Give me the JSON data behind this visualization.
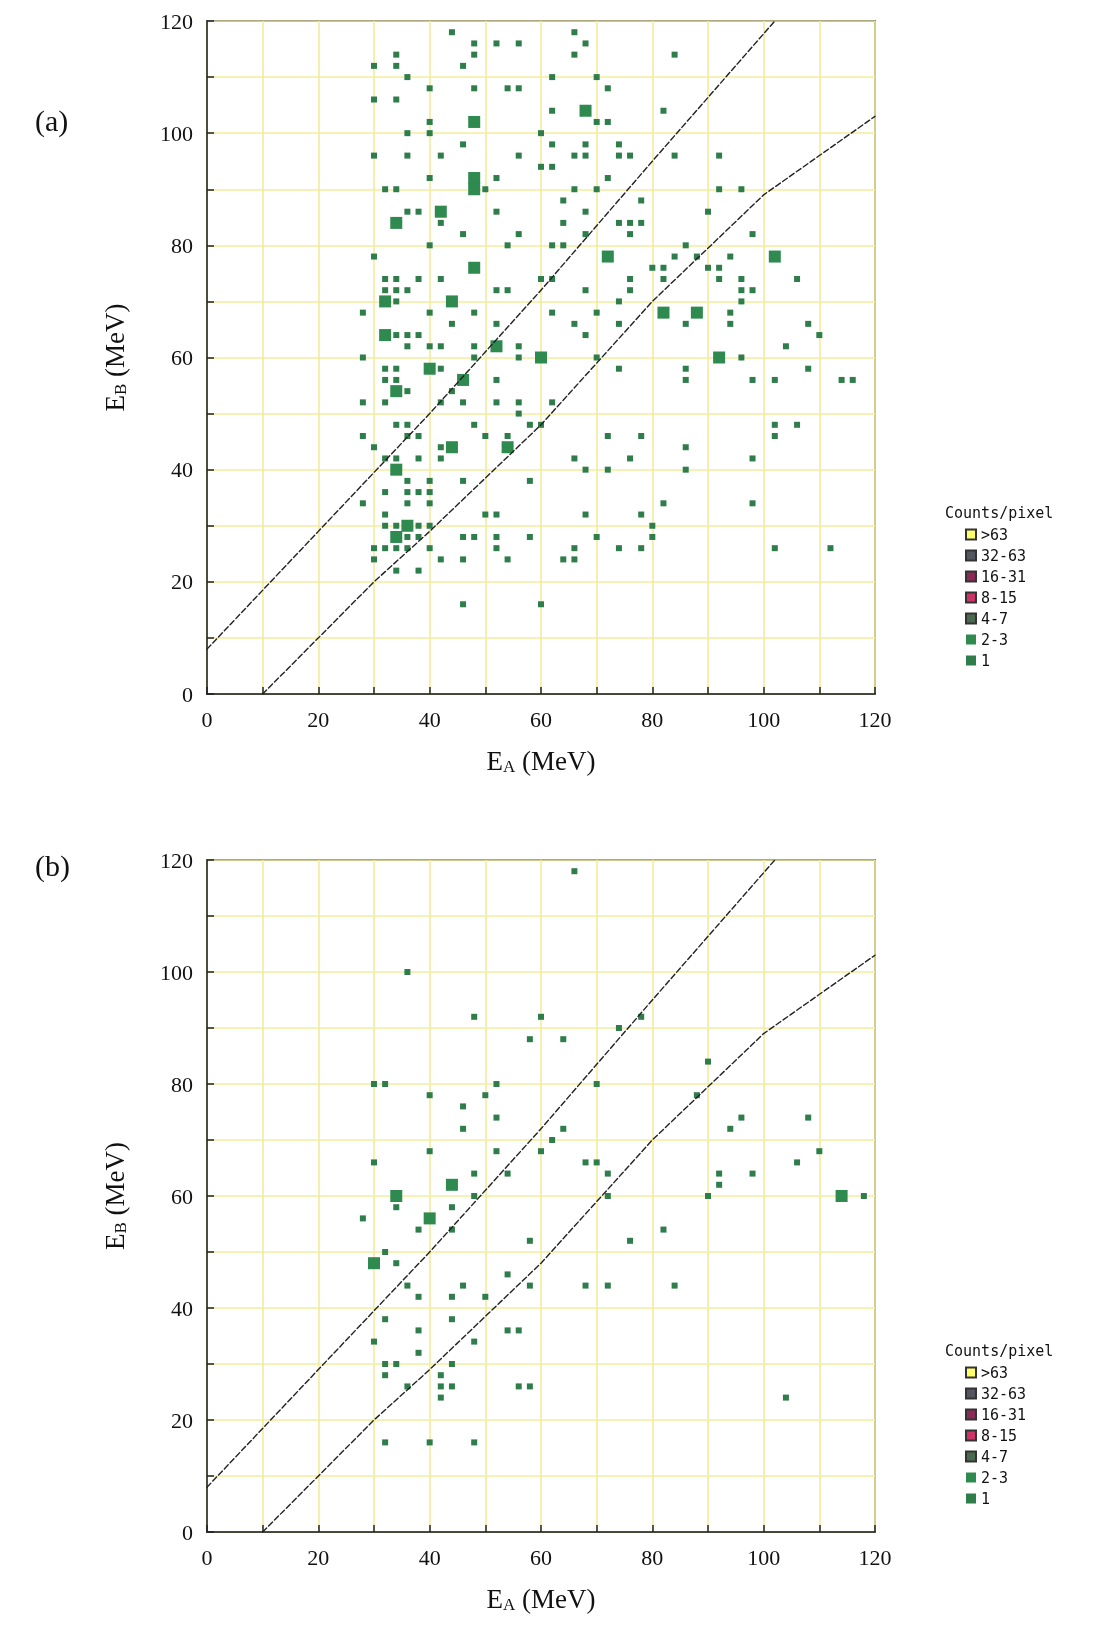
{
  "chart_data": [
    {
      "type": "scatter",
      "title": "(a)",
      "xlabel": "E$_{A}$ (MeV)",
      "ylabel": "E$_{B}$ (MeV)",
      "legend_title": "Counts/pixel",
      "legend": "right",
      "grid": true,
      "marker": "square",
      "xlim": [
        0,
        120
      ],
      "xticks": [
        0,
        {
          "value": 10,
          "label": null
        },
        20,
        {
          "value": 30,
          "label": null
        },
        40,
        {
          "value": 50,
          "label": null
        },
        60,
        {
          "value": 70,
          "label": null
        },
        80,
        {
          "value": 90,
          "label": null
        },
        100,
        {
          "value": 110,
          "label": null
        },
        120
      ],
      "ylim": [
        0,
        120
      ],
      "yticks": [
        0,
        {
          "value": 10,
          "label": null
        },
        20,
        {
          "value": 30,
          "label": null
        },
        40,
        {
          "value": 50,
          "label": null
        },
        60,
        {
          "value": 70,
          "label": null
        },
        80,
        {
          "value": 90,
          "label": null
        },
        100,
        {
          "value": 110,
          "label": null
        },
        120
      ],
      "series": [
        {
          "name": ">63",
          "color": "#ffff66"
        },
        {
          "name": "32-63",
          "color": "#555560"
        },
        {
          "name": "16-31",
          "color": "#8b2a55"
        },
        {
          "name": "8-15",
          "color": "#cc3366"
        },
        {
          "name": "4-7",
          "color": "#4a6a4e"
        },
        {
          "name": "2-3",
          "color": "#2e8a4e",
          "x": [
            48,
            48,
            48,
            42,
            34,
            48,
            32,
            44,
            32,
            52,
            60,
            40,
            46,
            34,
            44,
            54,
            34,
            36,
            34,
            68,
            72,
            102,
            82,
            88,
            92
          ],
          "values": [
            102,
            92,
            90,
            86,
            84,
            76,
            70,
            70,
            64,
            62,
            60,
            58,
            56,
            54,
            44,
            44,
            40,
            30,
            28,
            104,
            78,
            78,
            68,
            68,
            60
          ]
        },
        {
          "name": "1",
          "color": "#2e7d4a",
          "x": [
            44,
            48,
            52,
            56,
            34,
            48,
            30,
            34,
            46,
            36,
            40,
            48,
            54,
            56,
            30,
            34,
            40,
            36,
            40,
            60,
            46,
            30,
            36,
            42,
            56,
            60,
            40,
            52,
            32,
            34,
            50,
            36,
            38,
            52,
            42,
            46,
            56,
            40,
            54,
            30,
            32,
            34,
            38,
            42,
            60,
            32,
            34,
            36,
            52,
            54,
            34,
            28,
            40,
            48,
            44,
            52,
            34,
            36,
            38,
            36,
            40,
            42,
            48,
            56,
            28,
            48,
            56,
            66,
            68,
            66,
            84,
            62,
            70,
            72,
            62,
            82,
            70,
            72,
            62,
            68,
            74,
            66,
            68,
            74,
            76,
            84,
            92,
            62,
            72,
            66,
            70,
            92,
            96,
            64,
            78,
            68,
            90,
            64,
            74,
            76,
            78,
            68,
            76,
            98,
            62,
            64,
            86,
            84,
            88,
            94,
            80,
            82,
            90,
            92,
            62,
            76,
            82,
            92,
            96,
            106,
            68,
            76,
            96,
            98,
            74,
            96,
            62,
            70,
            94,
            66,
            74,
            86,
            94,
            108,
            68,
            110,
            104,
            70,
            96,
            32,
            34,
            42,
            32,
            34,
            52,
            36,
            44,
            28,
            32,
            42,
            46,
            52,
            56,
            56,
            34,
            36,
            48,
            58,
            60,
            28,
            36,
            38,
            50,
            54,
            30,
            42,
            32,
            34,
            38,
            42,
            36,
            40,
            46,
            58,
            32,
            36,
            38,
            40,
            28,
            36,
            40,
            32,
            50,
            52,
            32,
            34,
            38,
            40,
            36,
            38,
            46,
            48,
            52,
            58,
            30,
            32,
            34,
            36,
            40,
            52,
            30,
            42,
            46,
            54,
            34,
            38,
            46,
            60,
            74,
            86,
            108,
            86,
            98,
            102,
            114,
            116,
            62,
            102,
            106,
            72,
            78,
            102,
            86,
            66,
            76,
            98,
            68,
            72,
            86,
            82,
            98,
            68,
            78,
            80,
            70,
            80,
            66,
            74,
            78,
            102,
            112,
            64,
            66
          ],
          "values": [
            118,
            116,
            116,
            116,
            114,
            114,
            112,
            112,
            112,
            110,
            108,
            108,
            108,
            108,
            106,
            106,
            102,
            100,
            100,
            100,
            98,
            96,
            96,
            96,
            96,
            94,
            92,
            92,
            90,
            90,
            90,
            86,
            86,
            86,
            84,
            82,
            82,
            80,
            80,
            78,
            74,
            74,
            74,
            74,
            74,
            72,
            72,
            72,
            72,
            72,
            70,
            68,
            68,
            68,
            66,
            66,
            64,
            64,
            64,
            62,
            62,
            62,
            62,
            62,
            60,
            60,
            60,
            118,
            116,
            114,
            114,
            110,
            110,
            108,
            104,
            104,
            102,
            102,
            98,
            98,
            98,
            96,
            96,
            96,
            96,
            96,
            96,
            94,
            92,
            90,
            90,
            90,
            90,
            88,
            88,
            86,
            86,
            84,
            84,
            84,
            84,
            82,
            82,
            82,
            80,
            80,
            80,
            78,
            78,
            78,
            76,
            76,
            76,
            76,
            74,
            74,
            74,
            74,
            74,
            74,
            72,
            72,
            72,
            72,
            70,
            70,
            68,
            68,
            68,
            66,
            66,
            66,
            66,
            66,
            64,
            64,
            62,
            60,
            60,
            58,
            58,
            58,
            56,
            56,
            56,
            54,
            54,
            52,
            52,
            52,
            52,
            52,
            52,
            50,
            48,
            48,
            48,
            48,
            48,
            46,
            46,
            46,
            46,
            46,
            44,
            44,
            42,
            42,
            42,
            42,
            38,
            38,
            38,
            38,
            36,
            36,
            36,
            36,
            34,
            34,
            34,
            32,
            32,
            32,
            30,
            30,
            30,
            30,
            28,
            28,
            28,
            28,
            28,
            28,
            26,
            26,
            26,
            26,
            26,
            26,
            24,
            24,
            24,
            24,
            22,
            22,
            16,
            16,
            58,
            58,
            58,
            56,
            56,
            56,
            56,
            56,
            52,
            48,
            48,
            46,
            46,
            46,
            44,
            42,
            42,
            42,
            40,
            40,
            40,
            34,
            34,
            32,
            32,
            30,
            28,
            28,
            26,
            26,
            26,
            26,
            26,
            24,
            24
          ]
        },
        {
          "type": "line",
          "color": "#222222",
          "line_style": "dashed",
          "marker": "none",
          "x": [
            0,
            20,
            40,
            60,
            80,
            102
          ],
          "values": [
            8,
            29,
            50,
            72,
            95,
            120
          ]
        },
        {
          "type": "line",
          "color": "#222222",
          "line_style": "dashed",
          "marker": "none",
          "x": [
            10,
            30,
            40,
            60,
            80,
            100,
            120
          ],
          "values": [
            0,
            20,
            29,
            48,
            70,
            89,
            103
          ]
        }
      ]
    },
    {
      "type": "scatter",
      "title": "(b)",
      "xlabel": "E$_{A}$ (MeV)",
      "ylabel": "E$_{B}$ (MeV)",
      "legend_title": "Counts/pixel",
      "legend": "right",
      "grid": true,
      "marker": "square",
      "xlim": [
        0,
        120
      ],
      "xticks": [
        0,
        {
          "value": 10,
          "label": null
        },
        20,
        {
          "value": 30,
          "label": null
        },
        40,
        {
          "value": 50,
          "label": null
        },
        60,
        {
          "value": 70,
          "label": null
        },
        80,
        {
          "value": 90,
          "label": null
        },
        100,
        {
          "value": 110,
          "label": null
        },
        120
      ],
      "ylim": [
        0,
        120
      ],
      "yticks": [
        0,
        {
          "value": 10,
          "label": null
        },
        20,
        {
          "value": 30,
          "label": null
        },
        40,
        {
          "value": 50,
          "label": null
        },
        60,
        {
          "value": 70,
          "label": null
        },
        80,
        {
          "value": 90,
          "label": null
        },
        100,
        {
          "value": 110,
          "label": null
        },
        120
      ],
      "series": [
        {
          "name": ">63",
          "color": "#ffff66"
        },
        {
          "name": "32-63",
          "color": "#555560"
        },
        {
          "name": "16-31",
          "color": "#8b2a55"
        },
        {
          "name": "8-15",
          "color": "#cc3366"
        },
        {
          "name": "4-7",
          "color": "#4a6a4e"
        },
        {
          "name": "2-3",
          "color": "#2e8a4e",
          "x": [
            44,
            34,
            114,
            40,
            30
          ],
          "values": [
            62,
            60,
            60,
            56,
            48
          ]
        },
        {
          "name": "1",
          "color": "#2e7d4a",
          "x": [
            66,
            36,
            48,
            60,
            78,
            74,
            58,
            64,
            90,
            30,
            32,
            52,
            70,
            40,
            50,
            88,
            46,
            52,
            96,
            108,
            46,
            64,
            94,
            62,
            40,
            52,
            60,
            110,
            30,
            68,
            70,
            106,
            48,
            54,
            72,
            92,
            98,
            92,
            48,
            72,
            90,
            118,
            34,
            44,
            28,
            38,
            44,
            82,
            58,
            76,
            32,
            34,
            54,
            36,
            46,
            58,
            68,
            72,
            84,
            38,
            44,
            50,
            32,
            44,
            38,
            54,
            56,
            30,
            48,
            38,
            32,
            34,
            44,
            32,
            42,
            36,
            42,
            44,
            56,
            58,
            42,
            104,
            32,
            40,
            48
          ],
          "values": [
            118,
            100,
            92,
            92,
            92,
            90,
            88,
            88,
            84,
            80,
            80,
            80,
            80,
            78,
            78,
            78,
            76,
            74,
            74,
            74,
            72,
            72,
            72,
            70,
            68,
            68,
            68,
            68,
            66,
            66,
            66,
            66,
            64,
            64,
            64,
            64,
            64,
            62,
            60,
            60,
            60,
            60,
            58,
            58,
            56,
            54,
            54,
            54,
            52,
            52,
            50,
            48,
            46,
            44,
            44,
            44,
            44,
            44,
            44,
            42,
            42,
            42,
            38,
            38,
            36,
            36,
            36,
            34,
            34,
            32,
            30,
            30,
            30,
            28,
            28,
            26,
            26,
            26,
            26,
            26,
            24,
            24,
            16,
            16,
            16
          ]
        },
        {
          "type": "line",
          "color": "#222222",
          "line_style": "dashed",
          "marker": "none",
          "x": [
            0,
            20,
            40,
            60,
            80,
            102
          ],
          "values": [
            8,
            29,
            50,
            72,
            95,
            120
          ]
        },
        {
          "type": "line",
          "color": "#222222",
          "line_style": "dashed",
          "marker": "none",
          "x": [
            10,
            30,
            40,
            60,
            80,
            100,
            120
          ],
          "values": [
            0,
            20,
            29,
            48,
            70,
            89,
            103
          ]
        }
      ]
    }
  ]
}
